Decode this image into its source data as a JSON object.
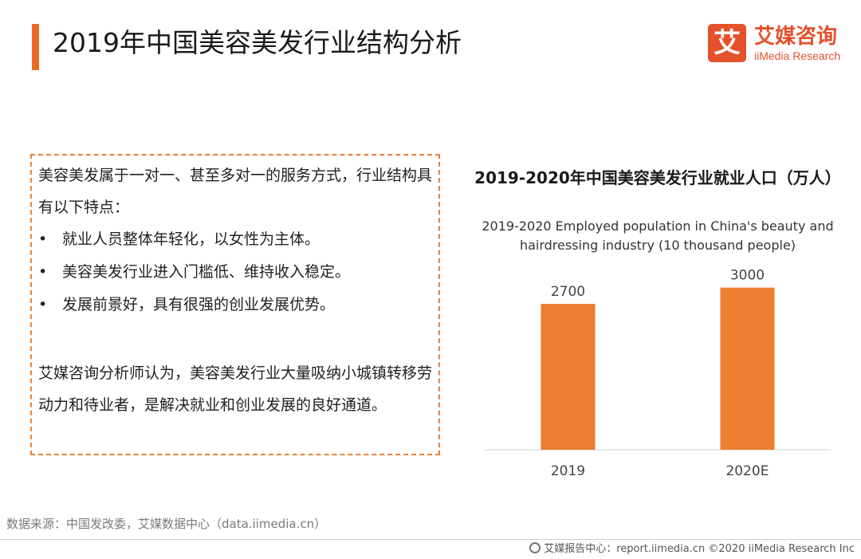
{
  "header": {
    "title": "2019年中国美容美发行业结构分析"
  },
  "logo": {
    "mark": "艾",
    "cn": "艾媒咨询",
    "en": "iiMedia Research",
    "color": "#e4512b"
  },
  "textbox": {
    "para1": "美容美发属于一对一、甚至多对一的服务方式，行业结构具有以下特点：",
    "bullet_glyph": "•",
    "bullets": [
      "就业人员整体年轻化，以女性为主体。",
      "美容美发行业进入门槛低、维持收入稳定。",
      "发展前景好，具有很强的创业发展优势。"
    ],
    "para2": "艾媒咨询分析师认为，美容美发行业大量吸纳小城镇转移劳动力和待业者，是解决就业和创业发展的良好通道。"
  },
  "chart_data": {
    "type": "bar",
    "title": "2019-2020年中国美容美发行业就业人口（万人）",
    "subtitle": "2019-2020 Employed population in China's beauty and hairdressing industry (10 thousand people)",
    "categories": [
      "2019",
      "2020E"
    ],
    "values": [
      2700,
      3000
    ],
    "value_labels": [
      "2700",
      "3000"
    ],
    "bar_color": "#ed7d31",
    "ylim": [
      0,
      3600
    ],
    "grid": false,
    "legend": "none"
  },
  "footer": {
    "source": "数据来源：中国发改委，艾媒数据中心（data.iimedia.cn）",
    "copyright": "艾媒报告中心：report.iimedia.cn  ©2020  iiMedia Research  Inc"
  }
}
